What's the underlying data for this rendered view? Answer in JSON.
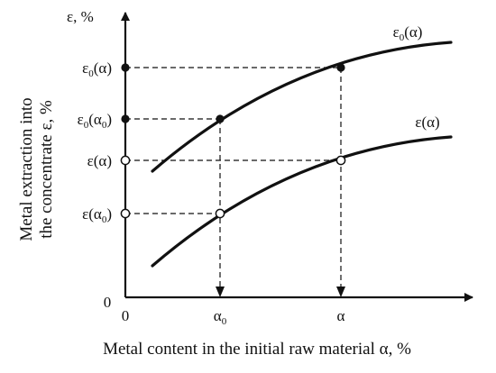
{
  "y_axis": {
    "symbol": "ε, %",
    "title_line1": "Metal extraction into",
    "title_line2": "the concentrate ε, %",
    "origin_label": "0",
    "tick_labels": [
      "ε0(α)",
      "ε0(α0)",
      "ε(α)",
      "ε(α0)"
    ]
  },
  "x_axis": {
    "origin_label": "0",
    "title": "Metal content in the initial raw material α, %",
    "tick_labels": [
      "α0",
      "α"
    ]
  },
  "curves": [
    {
      "label": "ε0(α)",
      "markers": "filled"
    },
    {
      "label": "ε(α)",
      "markers": "hollow"
    }
  ],
  "colors": {
    "ink": "#111111",
    "background": "#ffffff"
  }
}
